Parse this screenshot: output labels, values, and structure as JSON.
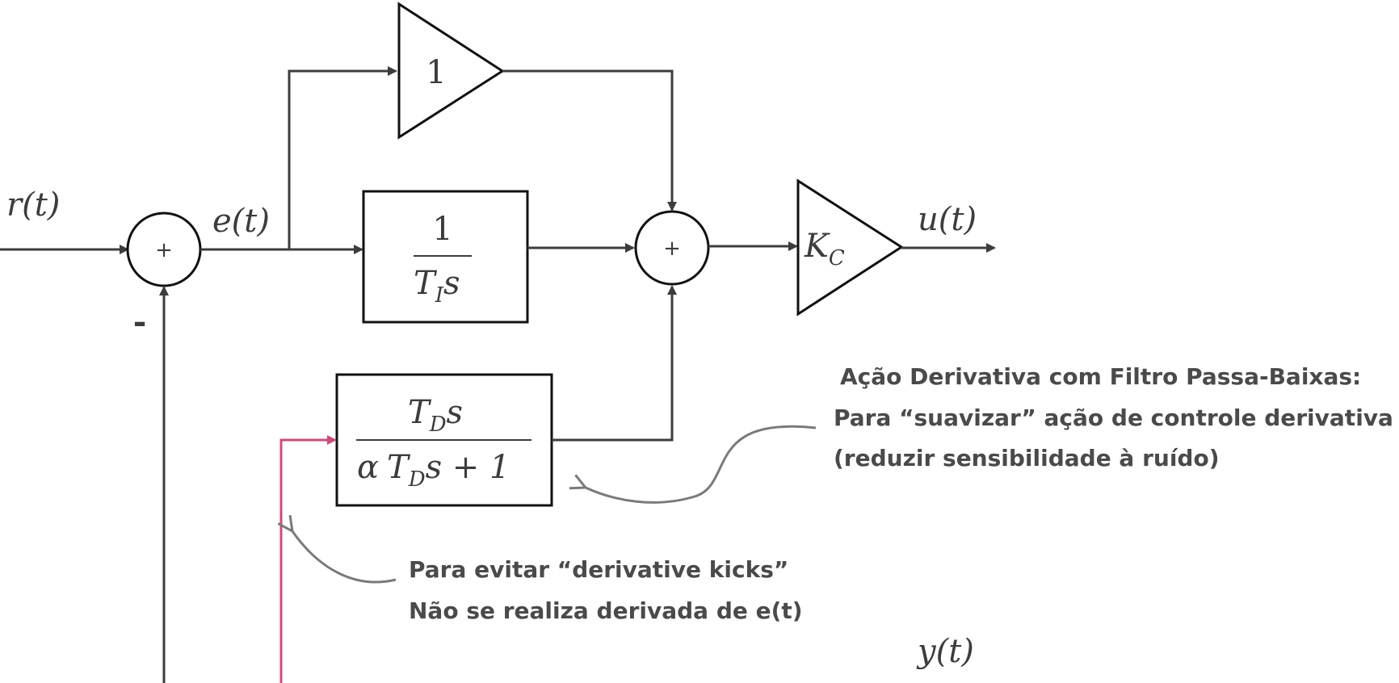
{
  "signals": {
    "reference": "r(t)",
    "error": "e(t)",
    "output": "u(t)",
    "measurement": "y(t)",
    "negative_sign": "-"
  },
  "blocks": {
    "proportional_gain": "1",
    "integral_num": "1",
    "integral_den_T": "T",
    "integral_den_sub": "I",
    "integral_den_s": "s",
    "derivative_num_T": "T",
    "derivative_num_sub": "D",
    "derivative_num_s": "s",
    "derivative_den_alpha": "α",
    "derivative_den_T": "T",
    "derivative_den_sub": "D",
    "derivative_den_rest": "s + 1",
    "controller_gain_K": "K",
    "controller_gain_sub": "C"
  },
  "summing_junctions": {
    "error_sum_sign": "+",
    "pid_sum_sign": "+"
  },
  "annotations": {
    "filter_line1": "Ação Derivativa com Filtro Passa-Baixas:",
    "filter_line2": "Para “suavizar” ação de controle derivativa",
    "filter_line3": "(reduzir sensibilidade à ruído)",
    "kick_line1": "Para evitar “derivative kicks”",
    "kick_line2": "Não se realiza derivada de e(t)"
  },
  "colors": {
    "line": "#3c3c3c",
    "block_border": "#111111",
    "derivative_feed": "#d04a7c",
    "annotation_arrow": "#7a7a7a"
  }
}
